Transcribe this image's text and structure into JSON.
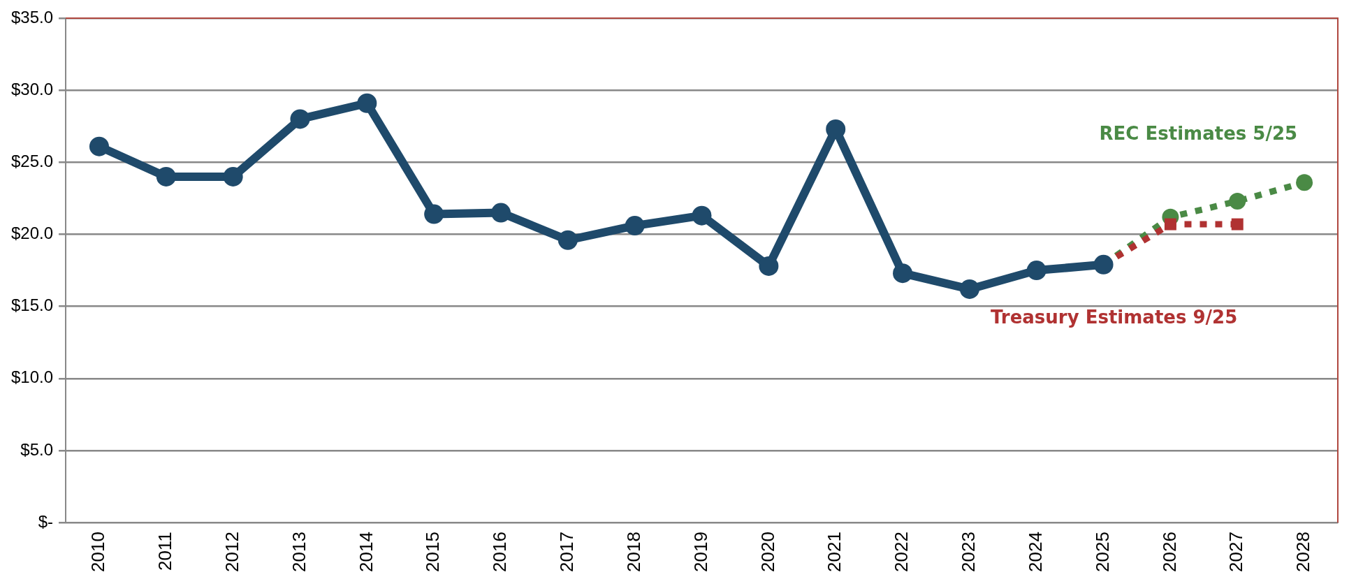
{
  "chart_data": {
    "type": "line",
    "categories": [
      "2010",
      "2011",
      "2012",
      "2013",
      "2014",
      "2015",
      "2016",
      "2017",
      "2018",
      "2019",
      "2020",
      "2021",
      "2022",
      "2023",
      "2024",
      "2025",
      "2026",
      "2027",
      "2028"
    ],
    "series": [
      {
        "color": "#1f4a6b",
        "marker": "circle",
        "line_style": "solid",
        "values": [
          26.1,
          24.0,
          24.0,
          28.0,
          29.1,
          21.4,
          21.5,
          19.6,
          20.6,
          21.3,
          17.8,
          27.3,
          17.3,
          16.2,
          17.5,
          17.9,
          null,
          null,
          null
        ]
      },
      {
        "name": "REC Estimates 5/25",
        "color": "#4a8a45",
        "marker": "circle",
        "line_style": "dotted",
        "values": [
          null,
          null,
          null,
          null,
          null,
          null,
          null,
          null,
          null,
          null,
          null,
          null,
          null,
          null,
          null,
          17.9,
          21.2,
          22.3,
          23.6
        ]
      },
      {
        "name": "Treasury Estimates 9/25",
        "color": "#b03232",
        "marker": "square",
        "line_style": "dotted",
        "values": [
          null,
          null,
          null,
          null,
          null,
          null,
          null,
          null,
          null,
          null,
          null,
          null,
          null,
          null,
          null,
          17.9,
          20.7,
          20.7,
          null
        ]
      }
    ],
    "ylim": [
      0,
      35
    ],
    "yticks": [
      {
        "value": 0,
        "label": "$-"
      },
      {
        "value": 5,
        "label": "$5.0"
      },
      {
        "value": 10,
        "label": "$10.0"
      },
      {
        "value": 15,
        "label": "$15.0"
      },
      {
        "value": 20,
        "label": "$20.0"
      },
      {
        "value": 25,
        "label": "$25.0"
      },
      {
        "value": 30,
        "label": "$30.0"
      },
      {
        "value": 35,
        "label": "$35.0"
      }
    ],
    "grid": "y",
    "legend": false
  }
}
